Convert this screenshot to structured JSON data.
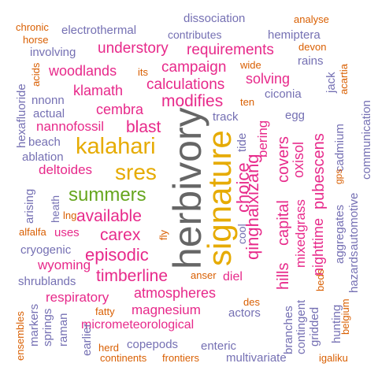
{
  "palette": {
    "pink": "#e7298a",
    "purple": "#7570b3",
    "orange": "#d95f02",
    "gray": "#666666",
    "green": "#66a61e",
    "gold": "#e6ab02"
  },
  "words": [
    {
      "text": "herbivory",
      "color": "gray"
    },
    {
      "text": "signature",
      "color": "gold"
    },
    {
      "text": "kalahari",
      "color": "gold"
    },
    {
      "text": "sres",
      "color": "gold"
    },
    {
      "text": "summers",
      "color": "green"
    },
    {
      "text": "qinghaixizang",
      "color": "pink"
    },
    {
      "text": "choice",
      "color": "pink"
    },
    {
      "text": "capital",
      "color": "pink"
    },
    {
      "text": "covers",
      "color": "pink"
    },
    {
      "text": "hills",
      "color": "pink"
    },
    {
      "text": "bering",
      "color": "pink"
    },
    {
      "text": "oxisol",
      "color": "pink"
    },
    {
      "text": "pubescens",
      "color": "pink"
    },
    {
      "text": "nighttime",
      "color": "pink"
    },
    {
      "text": "mixedgrass",
      "color": "pink"
    },
    {
      "text": "episodic",
      "color": "pink"
    },
    {
      "text": "timberline",
      "color": "pink"
    },
    {
      "text": "available",
      "color": "pink"
    },
    {
      "text": "carex",
      "color": "pink"
    },
    {
      "text": "blast",
      "color": "pink"
    },
    {
      "text": "modifies",
      "color": "pink"
    },
    {
      "text": "calculations",
      "color": "pink"
    },
    {
      "text": "campaign",
      "color": "pink"
    },
    {
      "text": "requirements",
      "color": "pink"
    },
    {
      "text": "understory",
      "color": "pink"
    },
    {
      "text": "woodlands",
      "color": "pink"
    },
    {
      "text": "klamath",
      "color": "pink"
    },
    {
      "text": "cembra",
      "color": "pink"
    },
    {
      "text": "nannofossil",
      "color": "pink"
    },
    {
      "text": "deltoides",
      "color": "pink"
    },
    {
      "text": "solving",
      "color": "pink"
    },
    {
      "text": "wyoming",
      "color": "pink"
    },
    {
      "text": "respiratory",
      "color": "pink"
    },
    {
      "text": "atmospheres",
      "color": "pink"
    },
    {
      "text": "magnesium",
      "color": "pink"
    },
    {
      "text": "micrometeorological",
      "color": "pink"
    },
    {
      "text": "uses",
      "color": "pink"
    },
    {
      "text": "diel",
      "color": "pink"
    },
    {
      "text": "dissociation",
      "color": "purple"
    },
    {
      "text": "electrothermal",
      "color": "purple"
    },
    {
      "text": "contributes",
      "color": "purple"
    },
    {
      "text": "hemiptera",
      "color": "purple"
    },
    {
      "text": "involving",
      "color": "purple"
    },
    {
      "text": "rains",
      "color": "purple"
    },
    {
      "text": "jack",
      "color": "purple"
    },
    {
      "text": "ciconia",
      "color": "purple"
    },
    {
      "text": "egg",
      "color": "purple"
    },
    {
      "text": "track",
      "color": "purple"
    },
    {
      "text": "tide",
      "color": "purple"
    },
    {
      "text": "cool",
      "color": "purple"
    },
    {
      "text": "nnonn",
      "color": "purple"
    },
    {
      "text": "actual",
      "color": "purple"
    },
    {
      "text": "hexafluoride",
      "color": "purple"
    },
    {
      "text": "beach",
      "color": "purple"
    },
    {
      "text": "ablation",
      "color": "purple"
    },
    {
      "text": "arising",
      "color": "purple"
    },
    {
      "text": "heath",
      "color": "purple"
    },
    {
      "text": "cryogenic",
      "color": "purple"
    },
    {
      "text": "shrublands",
      "color": "purple"
    },
    {
      "text": "markers",
      "color": "purple"
    },
    {
      "text": "springs",
      "color": "purple"
    },
    {
      "text": "raman",
      "color": "purple"
    },
    {
      "text": "earlier",
      "color": "purple"
    },
    {
      "text": "copepods",
      "color": "purple"
    },
    {
      "text": "enteric",
      "color": "purple"
    },
    {
      "text": "multivariate",
      "color": "purple"
    },
    {
      "text": "actors",
      "color": "purple"
    },
    {
      "text": "branches",
      "color": "purple"
    },
    {
      "text": "contingent",
      "color": "purple"
    },
    {
      "text": "gridded",
      "color": "purple"
    },
    {
      "text": "hunting",
      "color": "purple"
    },
    {
      "text": "aggregates",
      "color": "purple"
    },
    {
      "text": "automotive",
      "color": "purple"
    },
    {
      "text": "hazards",
      "color": "purple"
    },
    {
      "text": "communication",
      "color": "purple"
    },
    {
      "text": "cadmium",
      "color": "purple"
    },
    {
      "text": "chronic",
      "color": "orange"
    },
    {
      "text": "horse",
      "color": "orange"
    },
    {
      "text": "acids",
      "color": "orange"
    },
    {
      "text": "analyse",
      "color": "orange"
    },
    {
      "text": "devon",
      "color": "orange"
    },
    {
      "text": "wide",
      "color": "orange"
    },
    {
      "text": "its",
      "color": "orange"
    },
    {
      "text": "ten",
      "color": "orange"
    },
    {
      "text": "acartia",
      "color": "orange"
    },
    {
      "text": "lng",
      "color": "orange"
    },
    {
      "text": "alfalfa",
      "color": "orange"
    },
    {
      "text": "fly",
      "color": "orange"
    },
    {
      "text": "anser",
      "color": "orange"
    },
    {
      "text": "des",
      "color": "orange"
    },
    {
      "text": "fatty",
      "color": "orange"
    },
    {
      "text": "herd",
      "color": "orange"
    },
    {
      "text": "continents",
      "color": "orange"
    },
    {
      "text": "frontiers",
      "color": "orange"
    },
    {
      "text": "ensembles",
      "color": "orange"
    },
    {
      "text": "beds",
      "color": "orange"
    },
    {
      "text": "belgium",
      "color": "orange"
    },
    {
      "text": "igaliku",
      "color": "orange"
    },
    {
      "text": "gps",
      "color": "orange"
    }
  ]
}
